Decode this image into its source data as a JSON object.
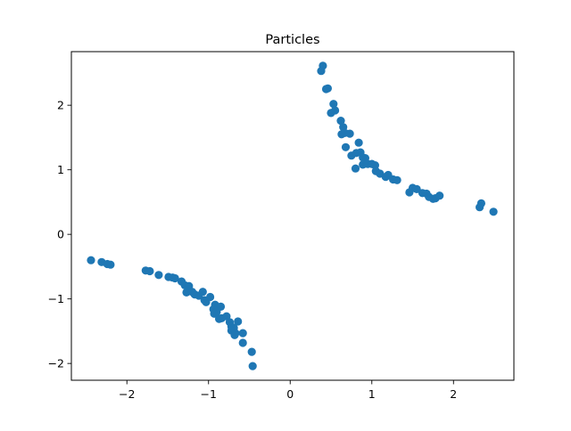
{
  "chart_data": {
    "type": "scatter",
    "title": "Particles",
    "xlabel": "",
    "ylabel": "",
    "xlim": [
      -2.68,
      2.74
    ],
    "ylim": [
      -2.26,
      2.83
    ],
    "xticks": [
      -2,
      -1,
      0,
      1,
      2
    ],
    "yticks": [
      -2,
      -1,
      0,
      1,
      2
    ],
    "xtick_labels": [
      "−2",
      "−1",
      "0",
      "1",
      "2"
    ],
    "ytick_labels": [
      "−2",
      "−1",
      "0",
      "1",
      "2"
    ],
    "grid": false,
    "legend": "none",
    "marker_color": "#1f77b4",
    "series": [
      {
        "points": [
          [
            0.4,
            2.61
          ],
          [
            0.38,
            2.53
          ],
          [
            0.44,
            2.25
          ],
          [
            0.46,
            2.26
          ],
          [
            0.53,
            2.02
          ],
          [
            0.55,
            1.92
          ],
          [
            0.5,
            1.88
          ],
          [
            0.62,
            1.76
          ],
          [
            0.65,
            1.66
          ],
          [
            0.67,
            1.57
          ],
          [
            0.73,
            1.56
          ],
          [
            0.63,
            1.55
          ],
          [
            0.68,
            1.35
          ],
          [
            0.84,
            1.42
          ],
          [
            0.75,
            1.22
          ],
          [
            0.81,
            1.26
          ],
          [
            0.86,
            1.27
          ],
          [
            0.89,
            1.19
          ],
          [
            0.92,
            1.18
          ],
          [
            0.89,
            1.08
          ],
          [
            0.8,
            1.02
          ],
          [
            0.95,
            1.09
          ],
          [
            1.0,
            1.09
          ],
          [
            1.04,
            1.07
          ],
          [
            1.05,
            0.98
          ],
          [
            1.1,
            0.94
          ],
          [
            1.17,
            0.89
          ],
          [
            1.2,
            0.92
          ],
          [
            1.26,
            0.85
          ],
          [
            1.31,
            0.84
          ],
          [
            1.46,
            0.65
          ],
          [
            1.5,
            0.72
          ],
          [
            1.55,
            0.7
          ],
          [
            1.62,
            0.64
          ],
          [
            1.67,
            0.63
          ],
          [
            1.7,
            0.58
          ],
          [
            1.75,
            0.55
          ],
          [
            1.78,
            0.56
          ],
          [
            1.83,
            0.6
          ],
          [
            2.32,
            0.42
          ],
          [
            2.34,
            0.48
          ],
          [
            2.49,
            0.35
          ],
          [
            -2.44,
            -0.4
          ],
          [
            -2.31,
            -0.43
          ],
          [
            -2.24,
            -0.46
          ],
          [
            -2.2,
            -0.47
          ],
          [
            -1.77,
            -0.56
          ],
          [
            -1.72,
            -0.57
          ],
          [
            -1.61,
            -0.63
          ],
          [
            -1.49,
            -0.66
          ],
          [
            -1.44,
            -0.67
          ],
          [
            -1.41,
            -0.68
          ],
          [
            -1.33,
            -0.73
          ],
          [
            -1.29,
            -0.79
          ],
          [
            -1.24,
            -0.8
          ],
          [
            -1.27,
            -0.9
          ],
          [
            -1.2,
            -0.89
          ],
          [
            -1.17,
            -0.93
          ],
          [
            -1.12,
            -0.95
          ],
          [
            -1.07,
            -0.89
          ],
          [
            -1.05,
            -1.02
          ],
          [
            -1.03,
            -1.05
          ],
          [
            -0.98,
            -0.97
          ],
          [
            -0.92,
            -1.09
          ],
          [
            -0.94,
            -1.16
          ],
          [
            -0.9,
            -1.2
          ],
          [
            -0.85,
            -1.12
          ],
          [
            -0.93,
            -1.23
          ],
          [
            -0.87,
            -1.31
          ],
          [
            -0.84,
            -1.3
          ],
          [
            -0.78,
            -1.27
          ],
          [
            -0.74,
            -1.36
          ],
          [
            -0.72,
            -1.43
          ],
          [
            -0.69,
            -1.45
          ],
          [
            -0.64,
            -1.35
          ],
          [
            -0.72,
            -1.49
          ],
          [
            -0.67,
            -1.53
          ],
          [
            -0.68,
            -1.56
          ],
          [
            -0.58,
            -1.53
          ],
          [
            -0.58,
            -1.68
          ],
          [
            -0.47,
            -1.82
          ],
          [
            -0.46,
            -2.04
          ]
        ]
      }
    ]
  }
}
